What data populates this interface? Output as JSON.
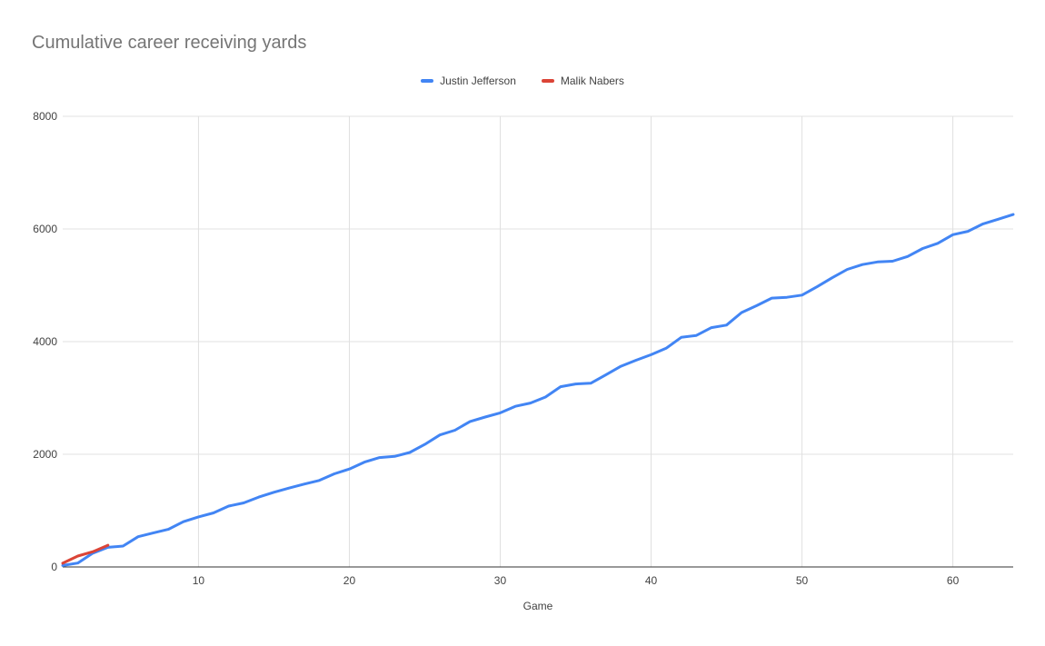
{
  "colors": {
    "background": "#ffffff",
    "title_text": "#757575",
    "tick_text": "#424242",
    "axis_title_text": "#424242",
    "gridline": "#e0e0e0",
    "axis_line": "#333333",
    "series_blue": "#4285f4",
    "series_red": "#db4437"
  },
  "chart_data": {
    "type": "line",
    "title": "Cumulative career receiving yards",
    "xlabel": "Game",
    "ylabel": "",
    "xlim": [
      1,
      64
    ],
    "ylim": [
      0,
      8000
    ],
    "xticks": [
      10,
      20,
      30,
      40,
      50,
      60
    ],
    "yticks": [
      0,
      2000,
      4000,
      6000,
      8000
    ],
    "grid": true,
    "legend_position": "top-center",
    "series": [
      {
        "name": "Justin Jefferson",
        "color": "#4285f4",
        "x": [
          1,
          2,
          3,
          4,
          5,
          6,
          7,
          8,
          9,
          10,
          11,
          12,
          13,
          14,
          15,
          16,
          17,
          18,
          19,
          20,
          21,
          22,
          23,
          24,
          25,
          26,
          27,
          28,
          29,
          30,
          31,
          32,
          33,
          34,
          35,
          36,
          37,
          38,
          39,
          40,
          41,
          42,
          43,
          44,
          45,
          46,
          47,
          48,
          49,
          50,
          51,
          52,
          53,
          54,
          55,
          56,
          57,
          58,
          59,
          60,
          61,
          62,
          63,
          64
        ],
        "y": [
          26,
          70,
          245,
          348,
          371,
          537,
          604,
          668,
          803,
          889,
          959,
          1080,
          1137,
          1241,
          1326,
          1400,
          1471,
          1536,
          1654,
          1738,
          1862,
          1942,
          1963,
          2032,
          2175,
          2344,
          2427,
          2582,
          2661,
          2735,
          2851,
          2909,
          3016,
          3200,
          3248,
          3262,
          3409,
          3563,
          3670,
          3768,
          3883,
          4076,
          4109,
          4248,
          4293,
          4516,
          4639,
          4772,
          4787,
          4825,
          4975,
          5134,
          5283,
          5368,
          5414,
          5428,
          5512,
          5653,
          5745,
          5899,
          5958,
          6091,
          6172,
          6257
        ]
      },
      {
        "name": "Malik Nabers",
        "color": "#db4437",
        "x": [
          1,
          2,
          3,
          4
        ],
        "y": [
          66,
          193,
          271,
          386
        ]
      }
    ]
  }
}
